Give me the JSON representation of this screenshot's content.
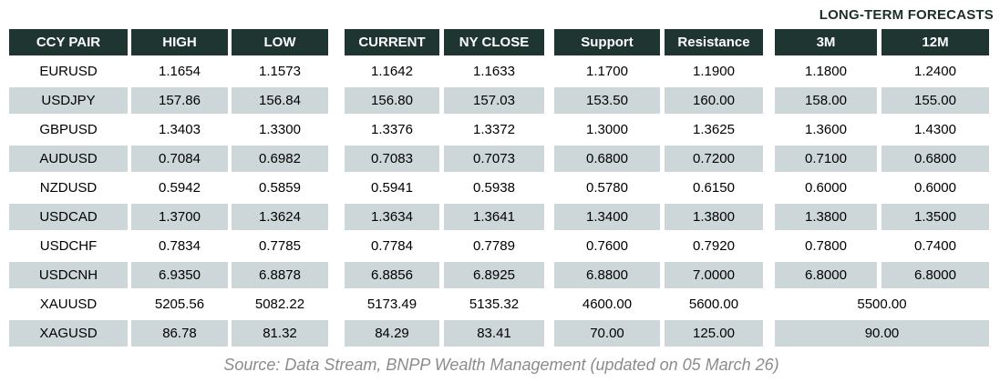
{
  "title": "LONG-TERM FORECASTS",
  "footer": "Source: Data Stream, BNPP Wealth Management (updated on 05 March 26)",
  "colors": {
    "header_bg": "#1f3531",
    "header_text": "#ffffff",
    "row_stripe": "#cdd7da",
    "title_text": "#1b2f2a",
    "footer_text": "#8c8c8c"
  },
  "chart_data": {
    "type": "table",
    "title": "LONG-TERM FORECASTS",
    "columns": [
      "CCY PAIR",
      "HIGH",
      "LOW",
      "CURRENT",
      "NY CLOSE",
      "Support",
      "Resistance",
      "3M",
      "12M"
    ],
    "rows": [
      [
        "EURUSD",
        "1.1654",
        "1.1573",
        "1.1642",
        "1.1633",
        "1.1700",
        "1.1900",
        "1.1800",
        "1.2400"
      ],
      [
        "USDJPY",
        "157.86",
        "156.84",
        "156.80",
        "157.03",
        "153.50",
        "160.00",
        "158.00",
        "155.00"
      ],
      [
        "GBPUSD",
        "1.3403",
        "1.3300",
        "1.3376",
        "1.3372",
        "1.3000",
        "1.3625",
        "1.3600",
        "1.4300"
      ],
      [
        "AUDUSD",
        "0.7084",
        "0.6982",
        "0.7083",
        "0.7073",
        "0.6800",
        "0.7200",
        "0.7100",
        "0.6800"
      ],
      [
        "NZDUSD",
        "0.5942",
        "0.5859",
        "0.5941",
        "0.5938",
        "0.5780",
        "0.6150",
        "0.6000",
        "0.6000"
      ],
      [
        "USDCAD",
        "1.3700",
        "1.3624",
        "1.3634",
        "1.3641",
        "1.3400",
        "1.3800",
        "1.3800",
        "1.3500"
      ],
      [
        "USDCHF",
        "0.7834",
        "0.7785",
        "0.7784",
        "0.7789",
        "0.7600",
        "0.7920",
        "0.7800",
        "0.7400"
      ],
      [
        "USDCNH",
        "6.9350",
        "6.8878",
        "6.8856",
        "6.8925",
        "6.8800",
        "7.0000",
        "6.8000",
        "6.8000"
      ],
      [
        "XAUUSD",
        "5205.56",
        "5082.22",
        "5173.49",
        "5135.32",
        "4600.00",
        "5600.00",
        "5500.00"
      ],
      [
        "XAGUSD",
        "86.78",
        "81.32",
        "84.29",
        "83.41",
        "70.00",
        "125.00",
        "90.00"
      ]
    ],
    "layout_notes": "Last two rows (XAUUSD, XAGUSD) have a single merged forecast cell spanning the 3M and 12M columns; body rows alternate white / light blue-gray stripes; white gaps separate column groups.",
    "source_note": "Source: Data Stream, BNPP Wealth Management (updated on 05 March 26)"
  }
}
